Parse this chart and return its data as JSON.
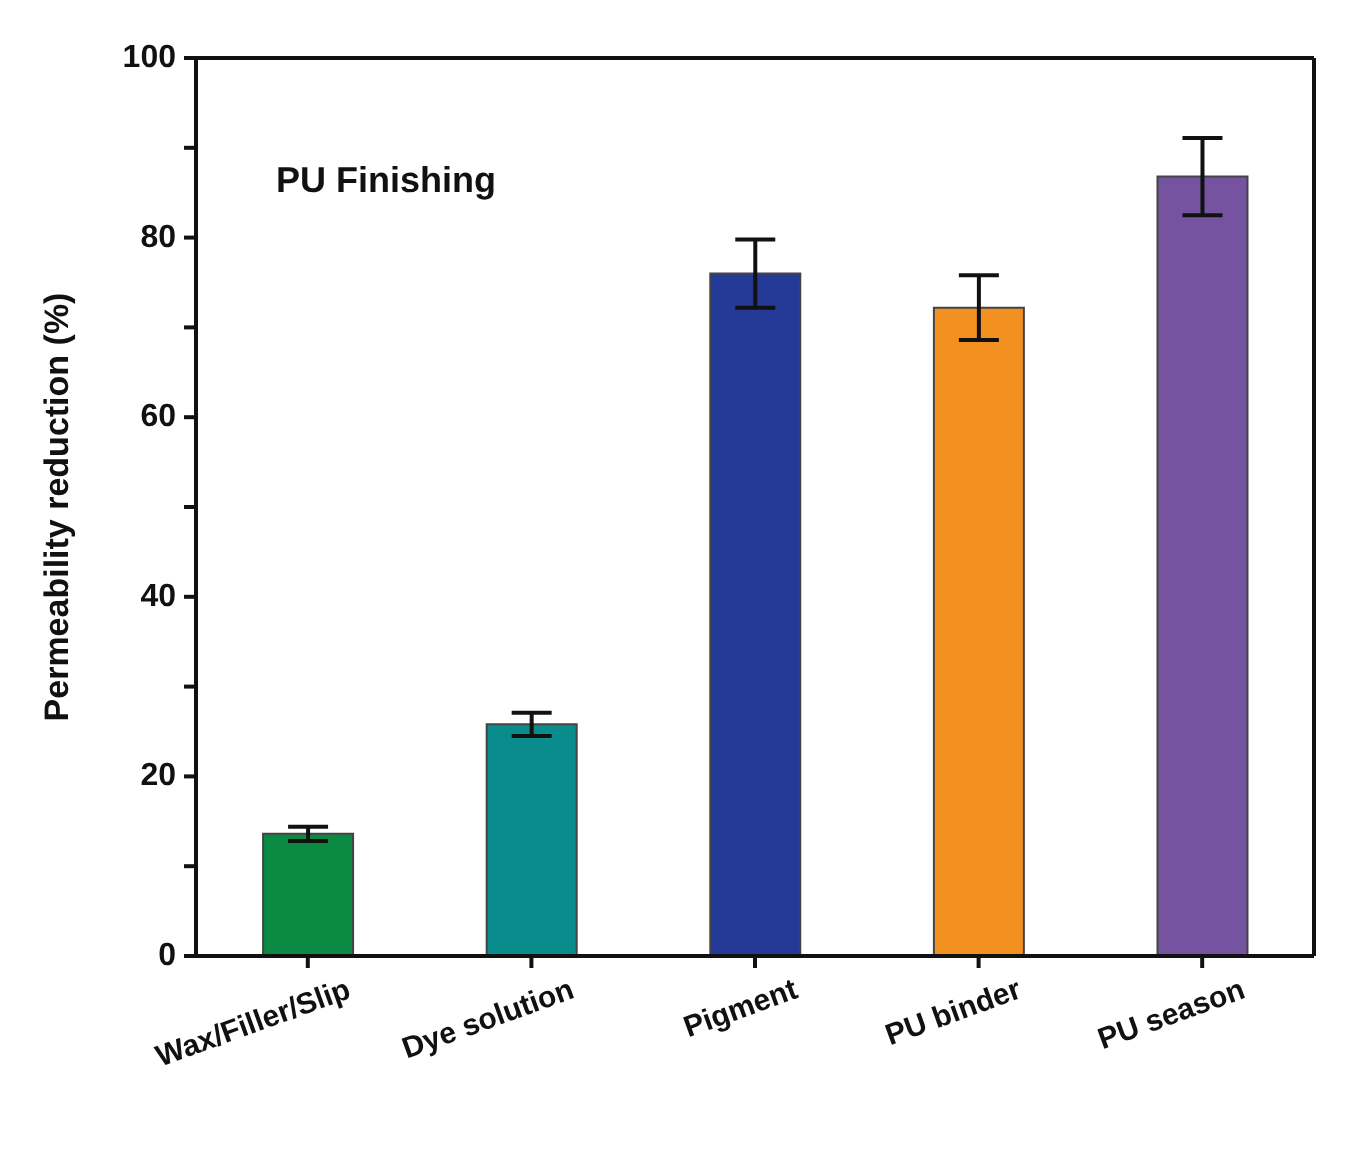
{
  "chart_data": {
    "type": "bar",
    "ylabel": "Permeability reduction (%)",
    "annotations": [
      "PU Finishing"
    ],
    "categories": [
      "Wax/Filler/Slip",
      "Dye solution",
      "Pigment",
      "PU binder",
      "PU season"
    ],
    "values": [
      13.6,
      25.8,
      76,
      72.2,
      86.8
    ],
    "colors": [
      "#0a8a43",
      "#0b8c8c",
      "#253a96",
      "#f39120",
      "#7553a0"
    ],
    "errors": [
      0.8,
      1.3,
      3.8,
      3.6,
      4.3
    ],
    "ylim": [
      0,
      100
    ],
    "yticks": [
      0,
      {
        "value": 10,
        "label": null
      },
      20,
      {
        "value": 30,
        "label": null
      },
      40,
      {
        "value": 50,
        "label": null
      },
      60,
      {
        "value": 70,
        "label": null
      },
      80,
      {
        "value": 90,
        "label": null
      },
      100
    ],
    "grid": false,
    "legend": false
  }
}
